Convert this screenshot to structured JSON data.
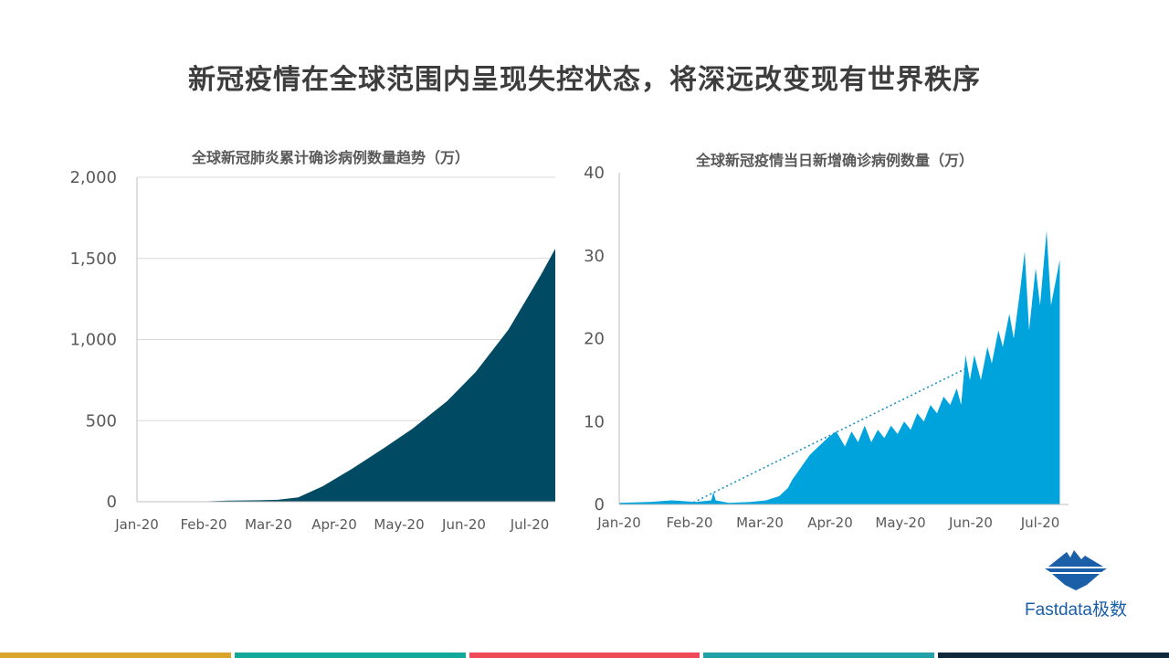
{
  "slide": {
    "title": "新冠疫情在全球范围内呈现失控状态，将深远改变现有世界秩序"
  },
  "chart_data": [
    {
      "type": "area",
      "title": "全球新冠肺炎累计确诊病例数量趋势（万）",
      "x_ticks": [
        "Jan-20",
        "Feb-20",
        "Mar-20",
        "Apr-20",
        "May-20",
        "Jun-20",
        "Jul-20"
      ],
      "x_range": [
        "2020-01-01",
        "2020-07-24"
      ],
      "ylim": [
        0,
        2000
      ],
      "y_ticks": [
        "0",
        "500",
        "1,000",
        "1,500",
        "2,000"
      ],
      "y_tick_values": [
        0,
        500,
        1000,
        1500,
        2000
      ],
      "grid": true,
      "color": "#004b63",
      "points": [
        [
          "2020-01-01",
          0
        ],
        [
          "2020-01-22",
          0.05
        ],
        [
          "2020-02-01",
          1.2
        ],
        [
          "2020-02-15",
          6.9
        ],
        [
          "2020-03-01",
          8.8
        ],
        [
          "2020-03-10",
          12
        ],
        [
          "2020-03-20",
          27
        ],
        [
          "2020-04-01",
          95
        ],
        [
          "2020-04-15",
          200
        ],
        [
          "2020-05-01",
          330
        ],
        [
          "2020-05-15",
          450
        ],
        [
          "2020-06-01",
          620
        ],
        [
          "2020-06-15",
          800
        ],
        [
          "2020-07-01",
          1060
        ],
        [
          "2020-07-10",
          1250
        ],
        [
          "2020-07-17",
          1400
        ],
        [
          "2020-07-24",
          1560
        ],
        [
          "2020-07-31",
          1710
        ]
      ]
    },
    {
      "type": "area",
      "title": "全球新冠疫情当日新增确诊病例数量（万）",
      "x_ticks": [
        "Jan-20",
        "Feb-20",
        "Mar-20",
        "Apr-20",
        "May-20",
        "Jun-20",
        "Jul-20"
      ],
      "x_range": [
        "2020-01-01",
        "2020-07-24"
      ],
      "ylim": [
        0,
        40
      ],
      "y_ticks": [
        "0",
        "10",
        "20",
        "30",
        "40"
      ],
      "y_tick_values": [
        0,
        10,
        20,
        30,
        40
      ],
      "grid": false,
      "color": "#00a3dc",
      "trendline": {
        "from": [
          "2020-02-02",
          0
        ],
        "to": [
          "2020-06-08",
          16.5
        ],
        "style": "dotted"
      },
      "points": [
        [
          "2020-01-01",
          0.2
        ],
        [
          "2020-01-15",
          0.3
        ],
        [
          "2020-01-25",
          0.5
        ],
        [
          "2020-02-05",
          0.3
        ],
        [
          "2020-02-12",
          0.5
        ],
        [
          "2020-02-13",
          1.5
        ],
        [
          "2020-02-14",
          0.5
        ],
        [
          "2020-02-20",
          0.2
        ],
        [
          "2020-03-01",
          0.3
        ],
        [
          "2020-03-08",
          0.5
        ],
        [
          "2020-03-14",
          1
        ],
        [
          "2020-03-18",
          2
        ],
        [
          "2020-03-20",
          3
        ],
        [
          "2020-03-24",
          4.5
        ],
        [
          "2020-03-28",
          6
        ],
        [
          "2020-04-01",
          7
        ],
        [
          "2020-04-05",
          8
        ],
        [
          "2020-04-09",
          8.8
        ],
        [
          "2020-04-13",
          7
        ],
        [
          "2020-04-16",
          8.8
        ],
        [
          "2020-04-19",
          7.5
        ],
        [
          "2020-04-22",
          9.5
        ],
        [
          "2020-04-25",
          7.5
        ],
        [
          "2020-04-28",
          9
        ],
        [
          "2020-05-01",
          8
        ],
        [
          "2020-05-04",
          9.5
        ],
        [
          "2020-05-07",
          8.5
        ],
        [
          "2020-05-10",
          10
        ],
        [
          "2020-05-13",
          9
        ],
        [
          "2020-05-16",
          11
        ],
        [
          "2020-05-19",
          10
        ],
        [
          "2020-05-22",
          12
        ],
        [
          "2020-05-25",
          11
        ],
        [
          "2020-05-28",
          13
        ],
        [
          "2020-05-31",
          12
        ],
        [
          "2020-06-03",
          14
        ],
        [
          "2020-06-05",
          12
        ],
        [
          "2020-06-07",
          18
        ],
        [
          "2020-06-09",
          15
        ],
        [
          "2020-06-11",
          18
        ],
        [
          "2020-06-14",
          15
        ],
        [
          "2020-06-17",
          19
        ],
        [
          "2020-06-19",
          17
        ],
        [
          "2020-06-22",
          21
        ],
        [
          "2020-06-24",
          19
        ],
        [
          "2020-06-27",
          23
        ],
        [
          "2020-06-29",
          20
        ],
        [
          "2020-07-02",
          26
        ],
        [
          "2020-07-04",
          30.5
        ],
        [
          "2020-07-06",
          21
        ],
        [
          "2020-07-09",
          28.5
        ],
        [
          "2020-07-11",
          24
        ],
        [
          "2020-07-14",
          33
        ],
        [
          "2020-07-16",
          24
        ],
        [
          "2020-07-20",
          29.5
        ]
      ]
    }
  ],
  "logo": {
    "text": "Fastdata极数",
    "icon": "iceberg-logo-icon"
  },
  "bottom_bar_colors": [
    "#d9a52b",
    "#13a99a",
    "#ef4a57",
    "#22a1a6",
    "#0f2a3a"
  ]
}
